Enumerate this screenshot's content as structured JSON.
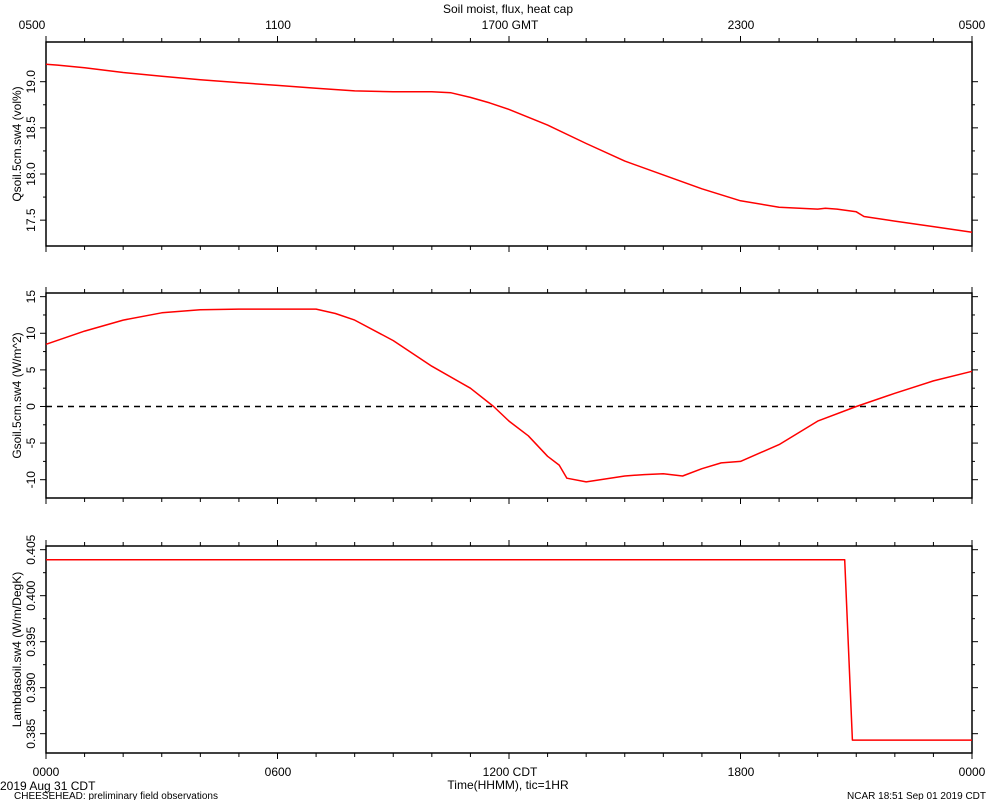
{
  "title": "Soil moist, flux, heat cap",
  "top_axis": {
    "ticks": [
      "0500",
      "1100",
      "1700 GMT",
      "2300",
      "0500"
    ]
  },
  "bottom_axis": {
    "ticks": [
      "0000",
      "0600",
      "1200 CDT",
      "1800",
      "0000"
    ],
    "label": "Time(HHMM), tic=1HR"
  },
  "footer": {
    "date_left": "2019 Aug 31 CDT",
    "project": "CHEESEHEAD: preliminary field observations",
    "stamp": "NCAR 18:51 Sep 01 2019 CDT"
  },
  "colors": {
    "series": "#ff0000",
    "axes": "#000000",
    "zero_line": "#000000"
  },
  "chart_data": [
    {
      "type": "line",
      "ylabel": "Qsoil.5cm.sw4 (vol%)",
      "ylim": [
        17.22,
        19.43
      ],
      "yticks": [
        17.5,
        18.0,
        18.5,
        19.0
      ],
      "ytick_labels": [
        "17.5",
        "18.0",
        "18.5",
        "19.0"
      ],
      "xlim": [
        0,
        24
      ],
      "series": [
        {
          "x": [
            0,
            0.3,
            1.0,
            2.0,
            3.0,
            4.0,
            5.0,
            6.0,
            7.0,
            8.0,
            9.0,
            10.0,
            10.5,
            11.0,
            11.5,
            12.0,
            13.0,
            14.0,
            15.0,
            16.0,
            17.0,
            18.0,
            19.0,
            20.0,
            20.2,
            20.5,
            21.0,
            21.2,
            22.0,
            23.0,
            24.0
          ],
          "y": [
            19.19,
            19.18,
            19.15,
            19.1,
            19.06,
            19.02,
            18.99,
            18.96,
            18.93,
            18.9,
            18.89,
            18.89,
            18.88,
            18.83,
            18.77,
            18.7,
            18.53,
            18.33,
            18.14,
            17.99,
            17.84,
            17.71,
            17.64,
            17.62,
            17.63,
            17.62,
            17.59,
            17.54,
            17.49,
            17.43,
            17.37
          ]
        }
      ]
    },
    {
      "type": "line",
      "ylabel": "Gsoil.5cm.sw4 (W/m^2)",
      "ylim": [
        -12.5,
        15.5
      ],
      "yticks": [
        -10,
        -5,
        0,
        5,
        10,
        15
      ],
      "ytick_labels": [
        "-10",
        "-5",
        "0",
        "5",
        "10",
        "15"
      ],
      "xlim": [
        0,
        24
      ],
      "zero_line": 0,
      "series": [
        {
          "x": [
            0,
            1.0,
            2.0,
            3.0,
            4.0,
            5.0,
            6.0,
            7.0,
            7.5,
            8.0,
            9.0,
            10.0,
            11.0,
            11.6,
            12.0,
            12.5,
            13.0,
            13.3,
            13.5,
            14.0,
            15.0,
            15.5,
            16.0,
            16.5,
            17.0,
            17.5,
            18.0,
            19.0,
            20.0,
            21.0,
            22.0,
            23.0,
            24.0
          ],
          "y": [
            8.5,
            10.3,
            11.8,
            12.8,
            13.2,
            13.3,
            13.3,
            13.3,
            12.7,
            11.8,
            9.0,
            5.5,
            2.5,
            0.0,
            -2.0,
            -4.0,
            -6.8,
            -8.0,
            -9.8,
            -10.3,
            -9.5,
            -9.3,
            -9.2,
            -9.5,
            -8.5,
            -7.7,
            -7.5,
            -5.2,
            -2.0,
            0.0,
            1.8,
            3.5,
            4.8
          ]
        }
      ]
    },
    {
      "type": "line",
      "ylabel": "Lambdasoil.sw4 (W/m/DegK)",
      "ylim": [
        0.3829,
        0.4054
      ],
      "yticks": [
        0.385,
        0.39,
        0.395,
        0.4,
        0.405
      ],
      "ytick_labels": [
        "0.385",
        "0.390",
        "0.395",
        "0.400",
        "0.405"
      ],
      "xlim": [
        0,
        24
      ],
      "series": [
        {
          "x": [
            0,
            20.7,
            20.9,
            24.0
          ],
          "y": [
            0.4039,
            0.4039,
            0.3843,
            0.3843
          ]
        }
      ]
    }
  ]
}
